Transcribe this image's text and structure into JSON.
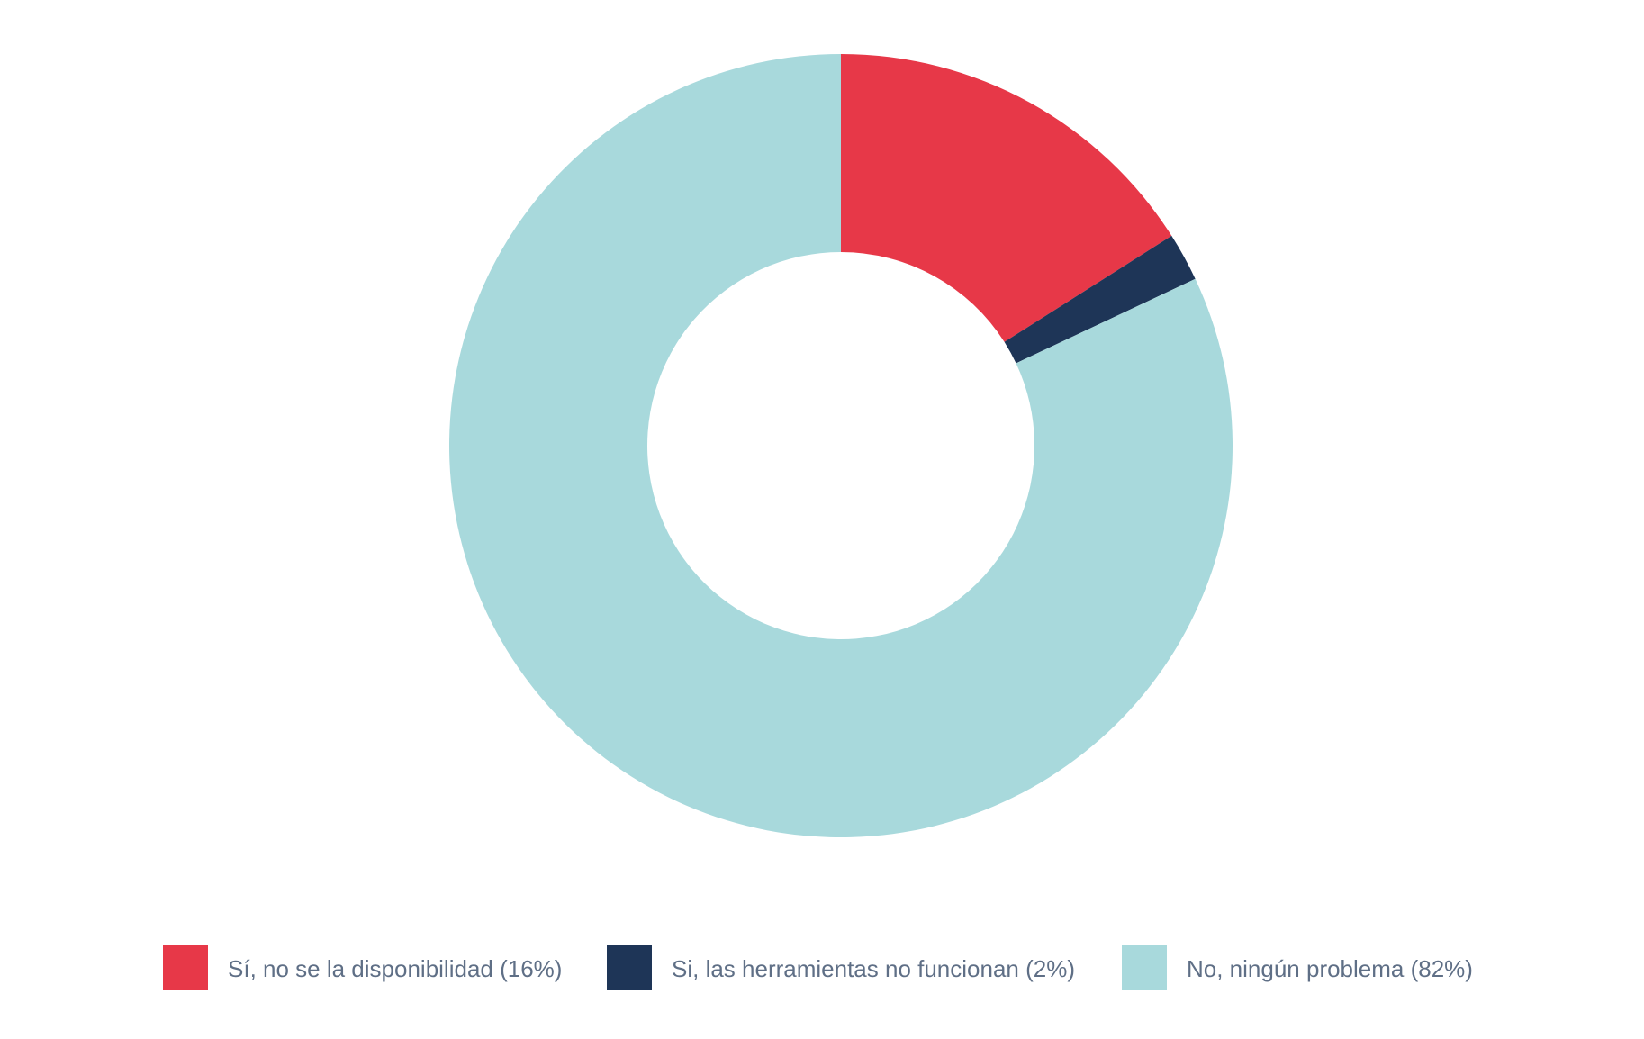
{
  "chart_data": {
    "type": "pie",
    "variant": "donut",
    "title": "",
    "slices": [
      {
        "label": "Sí, no se la disponibilidad (16%)",
        "value": 16,
        "color": "#e73848"
      },
      {
        "label": "Si, las herramientas no funcionan (2%)",
        "value": 2,
        "color": "#1e3557"
      },
      {
        "label": "No, ningún problema (82%)",
        "value": 82,
        "color": "#a8d9dc"
      }
    ],
    "start_angle_deg": 0,
    "direction": "clockwise",
    "legend_position": "bottom",
    "legend_text_color": "#5f6f86"
  }
}
